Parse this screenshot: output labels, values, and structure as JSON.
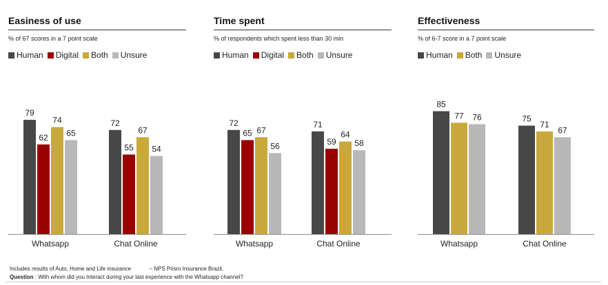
{
  "chart_data": [
    {
      "type": "bar",
      "title": "Easiness of use",
      "subtitle": "% of 67 scores in a 7 point scale",
      "categories": [
        "Whatsapp",
        "Chat Online"
      ],
      "series": [
        {
          "name": "Human",
          "color": "#474747",
          "values": [
            79,
            72
          ]
        },
        {
          "name": "Digital",
          "color": "#990000",
          "values": [
            62,
            55
          ]
        },
        {
          "name": "Both",
          "color": "#c9a93b",
          "values": [
            74,
            67
          ]
        },
        {
          "name": "Unsure",
          "color": "#b8b8b8",
          "values": [
            65,
            54
          ]
        }
      ],
      "ylim": [
        0,
        100
      ],
      "grid": false,
      "legend": "top-left"
    },
    {
      "type": "bar",
      "title": "Time spent",
      "subtitle": "% of respondents which spent less than 30 min",
      "categories": [
        "Whatsapp",
        "Chat Online"
      ],
      "series": [
        {
          "name": "Human",
          "color": "#474747",
          "values": [
            72,
            71
          ]
        },
        {
          "name": "Digital",
          "color": "#990000",
          "values": [
            65,
            59
          ]
        },
        {
          "name": "Both",
          "color": "#c9a93b",
          "values": [
            67,
            64
          ]
        },
        {
          "name": "Unsure",
          "color": "#b8b8b8",
          "values": [
            56,
            58
          ]
        }
      ],
      "ylim": [
        0,
        100
      ],
      "grid": false,
      "legend": "top-left"
    },
    {
      "type": "bar",
      "title": "Effectiveness",
      "subtitle": "% of 6-7 score in a 7 point scale",
      "categories": [
        "Whatsapp",
        "Chat Online"
      ],
      "series": [
        {
          "name": "Human",
          "color": "#474747",
          "values": [
            85,
            75
          ]
        },
        {
          "name": "Both",
          "color": "#c9a93b",
          "values": [
            77,
            71
          ]
        },
        {
          "name": "Unsure",
          "color": "#b8b8b8",
          "values": [
            76,
            67
          ]
        }
      ],
      "ylim": [
        0,
        100
      ],
      "grid": false,
      "legend": "top-left"
    }
  ],
  "footer": {
    "note": "Includes results of Auto, Home and Life insurance",
    "source": "– NPS Prism Insurance Brazil.",
    "question_label": "Question",
    "question_text": ": With whom did you Interact during your last experience with the Whatsapp channel?"
  }
}
